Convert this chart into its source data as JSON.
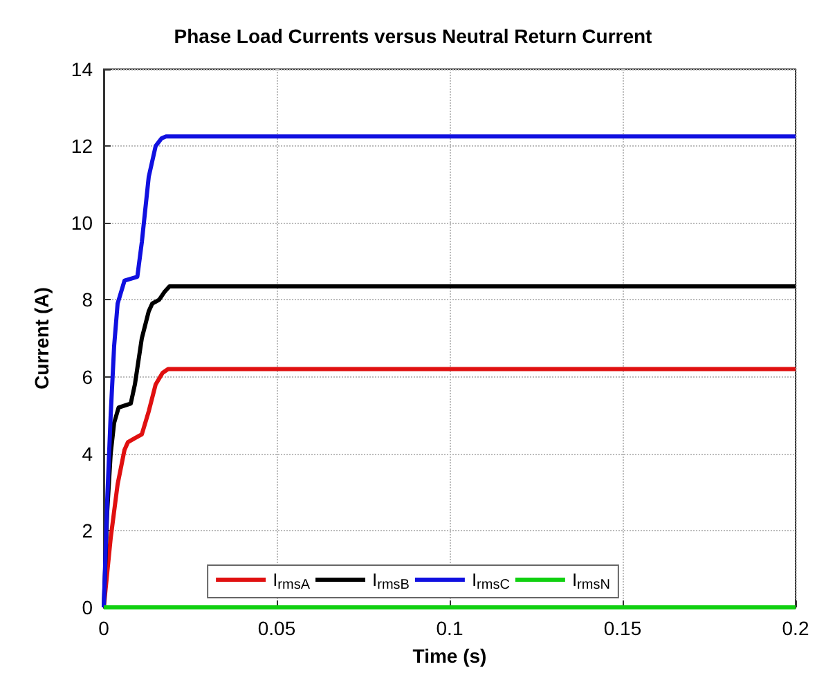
{
  "chart_data": {
    "type": "line",
    "title": "Phase Load Currents versus Neutral Return Current",
    "xlabel": "Time (s)",
    "ylabel": "Current (A)",
    "xlim": [
      0,
      0.2
    ],
    "xticks": [
      0,
      0.05,
      0.1,
      0.15,
      0.2
    ],
    "ylim": [
      0,
      14
    ],
    "yticks": [
      0,
      2,
      4,
      6,
      8,
      10,
      12,
      14
    ],
    "grid": true,
    "legend": "bottom",
    "line_style": "solid",
    "marker": "none",
    "series": [
      {
        "name": "I$_{rmsA}$",
        "color": "#e01010",
        "x": [
          0,
          0.002,
          0.004,
          0.006,
          0.007,
          0.009,
          0.011,
          0.013,
          0.015,
          0.017,
          0.0186,
          0.02,
          0.2
        ],
        "values": [
          0,
          1.8,
          3.2,
          4.1,
          4.3,
          4.4,
          4.5,
          5.1,
          5.8,
          6.1,
          6.2,
          6.2,
          6.2
        ]
      },
      {
        "name": "I$_{rmsB}$",
        "color": "#000000",
        "x": [
          0,
          0.001,
          0.002,
          0.003,
          0.0043,
          0.0078,
          0.009,
          0.011,
          0.013,
          0.014,
          0.016,
          0.0175,
          0.019,
          0.02,
          0.2
        ],
        "values": [
          0,
          2.5,
          4.0,
          4.8,
          5.2,
          5.3,
          5.8,
          7.0,
          7.7,
          7.9,
          8.0,
          8.2,
          8.35,
          8.35,
          8.35
        ]
      },
      {
        "name": "I$_{rmsC}$",
        "color": "#1010e0",
        "x": [
          0,
          0.001,
          0.002,
          0.003,
          0.004,
          0.006,
          0.0097,
          0.011,
          0.013,
          0.015,
          0.0167,
          0.018,
          0.02,
          0.2
        ],
        "values": [
          0,
          2.8,
          5.0,
          6.8,
          7.9,
          8.5,
          8.6,
          9.5,
          11.2,
          12.0,
          12.2,
          12.25,
          12.25,
          12.25
        ]
      },
      {
        "name": "I$_{rmsN}$",
        "color": "#10d010",
        "x": [
          0,
          0.2
        ],
        "values": [
          0,
          0
        ]
      }
    ]
  }
}
